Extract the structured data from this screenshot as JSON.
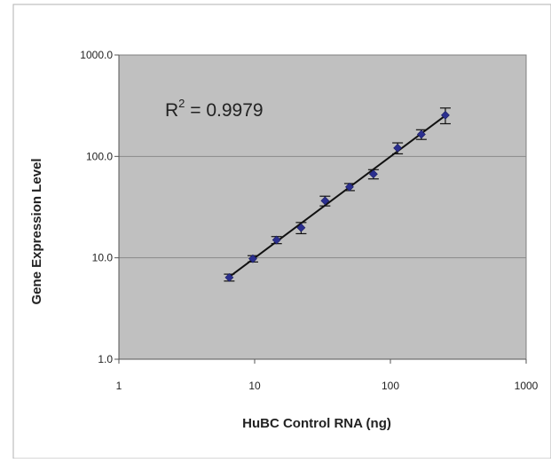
{
  "chart_data": {
    "type": "scatter",
    "xlabel": "HuBC Control RNA (ng)",
    "ylabel": "Gene Expression Level",
    "x_scale": "log",
    "y_scale": "log",
    "xlim": [
      1,
      1000
    ],
    "ylim": [
      1,
      1000
    ],
    "x_ticks": [
      "1",
      "10",
      "100",
      "1000"
    ],
    "y_ticks": [
      "1.0",
      "10.0",
      "100.0",
      "1000.0"
    ],
    "grid": "horizontal major lines",
    "plot_background": "#c0c0c0",
    "marker_color": "#2b2f8f",
    "trendline": true,
    "annotation": {
      "base": "R",
      "exponent": "2",
      "rest": " = 0.9979"
    },
    "points": [
      {
        "x": 6.5,
        "y": 6.4,
        "err": 0.5
      },
      {
        "x": 9.7,
        "y": 9.8,
        "err": 0.7
      },
      {
        "x": 14.5,
        "y": 15.0,
        "err": 1.2
      },
      {
        "x": 22.0,
        "y": 19.8,
        "err": 2.5
      },
      {
        "x": 33.0,
        "y": 36.5,
        "err": 4.0
      },
      {
        "x": 50.0,
        "y": 50.0,
        "err": 4.0
      },
      {
        "x": 75.0,
        "y": 67.0,
        "err": 7.0
      },
      {
        "x": 113.0,
        "y": 121.0,
        "err": 15.0
      },
      {
        "x": 169.0,
        "y": 165.0,
        "err": 18.0
      },
      {
        "x": 254.0,
        "y": 255.0,
        "err": 45.0
      }
    ]
  }
}
